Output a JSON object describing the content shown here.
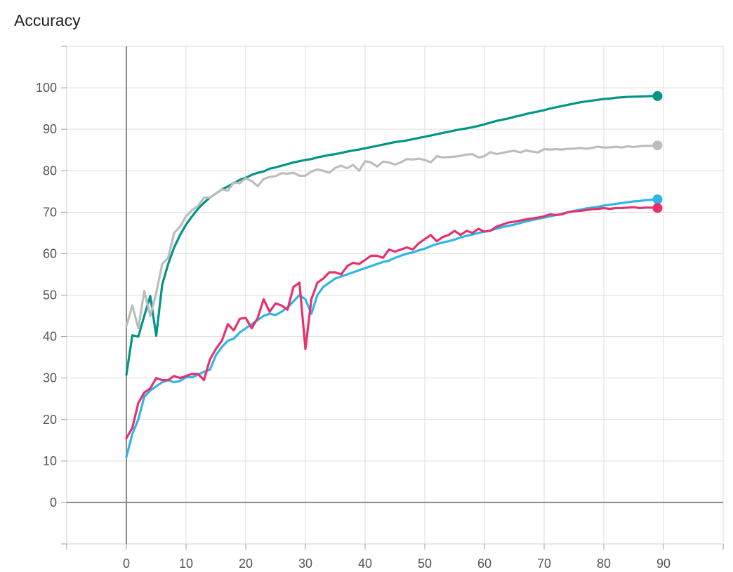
{
  "chart_data": {
    "type": "line",
    "title": "Accuracy",
    "xlabel": "",
    "ylabel": "",
    "xlim": [
      -10,
      100
    ],
    "ylim": [
      -10,
      110
    ],
    "xticks": [
      0,
      10,
      20,
      30,
      40,
      50,
      60,
      70,
      80,
      90
    ],
    "yticks": [
      0,
      10,
      20,
      30,
      40,
      50,
      60,
      70,
      80,
      90,
      100
    ],
    "grid": true,
    "series": [
      {
        "color": "#009587",
        "x": [
          0,
          1,
          2,
          3,
          4,
          5,
          6,
          7,
          8,
          9,
          10,
          11,
          12,
          13,
          14,
          15,
          16,
          17,
          18,
          19,
          20,
          21,
          22,
          23,
          24,
          25,
          26,
          27,
          28,
          29,
          30,
          31,
          32,
          33,
          34,
          35,
          36,
          37,
          38,
          39,
          40,
          41,
          42,
          43,
          44,
          45,
          46,
          47,
          48,
          49,
          50,
          51,
          52,
          53,
          54,
          55,
          56,
          57,
          58,
          59,
          60,
          61,
          62,
          63,
          64,
          65,
          66,
          67,
          68,
          69,
          70,
          71,
          72,
          73,
          74,
          75,
          76,
          77,
          78,
          79,
          80,
          81,
          82,
          83,
          84,
          85,
          86,
          87,
          88,
          89
        ],
        "y": [
          30.8,
          40.3,
          40,
          45,
          49.8,
          40.2,
          52.5,
          57.5,
          61.5,
          64.5,
          67,
          69,
          70.8,
          72.3,
          73.5,
          74.5,
          75.5,
          76.2,
          77,
          77.8,
          78.3,
          79,
          79.5,
          79.8,
          80.5,
          80.8,
          81.2,
          81.6,
          82,
          82.3,
          82.6,
          82.8,
          83.2,
          83.5,
          83.8,
          84,
          84.3,
          84.6,
          84.9,
          85.1,
          85.4,
          85.7,
          86,
          86.3,
          86.6,
          86.9,
          87.1,
          87.3,
          87.6,
          87.9,
          88.2,
          88.5,
          88.8,
          89.1,
          89.4,
          89.7,
          90,
          90.2,
          90.5,
          90.8,
          91.2,
          91.6,
          92,
          92.3,
          92.6,
          93,
          93.3,
          93.7,
          94,
          94.3,
          94.6,
          95,
          95.3,
          95.6,
          95.9,
          96.2,
          96.5,
          96.7,
          96.9,
          97.1,
          97.3,
          97.4,
          97.6,
          97.7,
          97.8,
          97.85,
          97.9,
          97.95,
          98,
          98
        ]
      },
      {
        "color": "#bdbdbd",
        "x": [
          0,
          1,
          2,
          3,
          4,
          5,
          6,
          7,
          8,
          9,
          10,
          11,
          12,
          13,
          14,
          15,
          16,
          17,
          18,
          19,
          20,
          21,
          22,
          23,
          24,
          25,
          26,
          27,
          28,
          29,
          30,
          31,
          32,
          33,
          34,
          35,
          36,
          37,
          38,
          39,
          40,
          41,
          42,
          43,
          44,
          45,
          46,
          47,
          48,
          49,
          50,
          51,
          52,
          53,
          54,
          55,
          56,
          57,
          58,
          59,
          60,
          61,
          62,
          63,
          64,
          65,
          66,
          67,
          68,
          69,
          70,
          71,
          72,
          73,
          74,
          75,
          76,
          77,
          78,
          79,
          80,
          81,
          82,
          83,
          84,
          85,
          86,
          87,
          88,
          89
        ],
        "y": [
          42.5,
          47.5,
          42,
          51,
          45,
          50.5,
          57.5,
          59,
          65,
          66.5,
          69,
          70.5,
          71.5,
          73.5,
          73.5,
          74.5,
          75.5,
          75.2,
          77.2,
          77,
          78.2,
          77.5,
          76.3,
          78,
          78.5,
          78.7,
          79.4,
          79.3,
          79.5,
          78.8,
          78.8,
          79.8,
          80.3,
          80,
          79.5,
          80.7,
          81.2,
          80.6,
          81.4,
          80,
          82.3,
          82,
          81,
          82.2,
          82,
          81.5,
          82,
          82.8,
          82.7,
          82.9,
          82.6,
          82,
          83.5,
          83.2,
          83.3,
          83.4,
          83.6,
          83.9,
          84,
          83.2,
          83.5,
          84.5,
          84,
          84.3,
          84.6,
          84.8,
          84.4,
          84.9,
          84.6,
          84.4,
          85.2,
          85.1,
          85.2,
          85.1,
          85.3,
          85.3,
          85.5,
          85.3,
          85.5,
          85.8,
          85.6,
          85.6,
          85.8,
          85.6,
          85.9,
          85.7,
          85.9,
          86,
          86,
          86.1
        ]
      },
      {
        "color": "#2fb5e8",
        "x": [
          0,
          1,
          2,
          3,
          4,
          5,
          6,
          7,
          8,
          9,
          10,
          11,
          12,
          13,
          14,
          15,
          16,
          17,
          18,
          19,
          20,
          21,
          22,
          23,
          24,
          25,
          26,
          27,
          28,
          29,
          30,
          31,
          32,
          33,
          34,
          35,
          36,
          37,
          38,
          39,
          40,
          41,
          42,
          43,
          44,
          45,
          46,
          47,
          48,
          49,
          50,
          51,
          52,
          53,
          54,
          55,
          56,
          57,
          58,
          59,
          60,
          61,
          62,
          63,
          64,
          65,
          66,
          67,
          68,
          69,
          70,
          71,
          72,
          73,
          74,
          75,
          76,
          77,
          78,
          79,
          80,
          81,
          82,
          83,
          84,
          85,
          86,
          87,
          88,
          89
        ],
        "y": [
          11,
          16.5,
          20,
          25.5,
          27,
          28,
          29,
          29.5,
          29,
          29.3,
          30.2,
          30.2,
          30.8,
          31.5,
          32,
          35.5,
          37.5,
          39,
          39.5,
          41,
          42,
          43,
          44,
          45,
          45.5,
          45.2,
          46,
          47,
          48.5,
          50,
          49,
          45.5,
          50,
          52,
          53,
          54,
          54.5,
          55,
          55.5,
          56,
          56.5,
          57,
          57.5,
          58,
          58.3,
          59,
          59.5,
          60,
          60.3,
          60.8,
          61.2,
          61.8,
          62.3,
          62.7,
          63,
          63.4,
          63.9,
          64.3,
          64.6,
          65,
          65.3,
          65.6,
          66,
          66.4,
          66.7,
          67,
          67.4,
          67.8,
          68.1,
          68.4,
          68.7,
          69,
          69.3,
          69.6,
          70,
          70.3,
          70.6,
          70.9,
          71.1,
          71.3,
          71.6,
          71.8,
          72,
          72.2,
          72.4,
          72.6,
          72.7,
          72.9,
          73,
          73.1
        ]
      },
      {
        "color": "#e8306f",
        "x": [
          0,
          1,
          2,
          3,
          4,
          5,
          6,
          7,
          8,
          9,
          10,
          11,
          12,
          13,
          14,
          15,
          16,
          17,
          18,
          19,
          20,
          21,
          22,
          23,
          24,
          25,
          26,
          27,
          28,
          29,
          30,
          31,
          32,
          33,
          34,
          35,
          36,
          37,
          38,
          39,
          40,
          41,
          42,
          43,
          44,
          45,
          46,
          47,
          48,
          49,
          50,
          51,
          52,
          53,
          54,
          55,
          56,
          57,
          58,
          59,
          60,
          61,
          62,
          63,
          64,
          65,
          66,
          67,
          68,
          69,
          70,
          71,
          72,
          73,
          74,
          75,
          76,
          77,
          78,
          79,
          80,
          81,
          82,
          83,
          84,
          85,
          86,
          87,
          88,
          89
        ],
        "y": [
          15.5,
          18,
          24,
          26.5,
          27.5,
          30,
          29.5,
          29.5,
          30.5,
          30,
          30.5,
          31,
          31,
          29.5,
          34.5,
          37,
          39,
          43,
          41.5,
          44.3,
          44.5,
          42,
          44.5,
          49,
          46,
          48,
          47.5,
          46.5,
          52,
          53,
          37,
          49,
          53,
          54,
          55.5,
          55.5,
          55,
          57,
          57.8,
          57.5,
          58.5,
          59.5,
          59.5,
          59,
          61,
          60.5,
          61,
          61.5,
          61,
          62.5,
          63.5,
          64.5,
          63,
          64,
          64.5,
          65.5,
          64.5,
          65.5,
          65,
          66,
          65.3,
          65.5,
          66.5,
          67,
          67.5,
          67.7,
          68,
          68.3,
          68.5,
          68.7,
          69,
          69.5,
          69.3,
          69.5,
          70,
          70.2,
          70.3,
          70.5,
          70.7,
          70.8,
          71,
          70.8,
          71,
          71,
          71.1,
          71.2,
          71,
          71.1,
          71.1,
          71
        ]
      }
    ]
  }
}
